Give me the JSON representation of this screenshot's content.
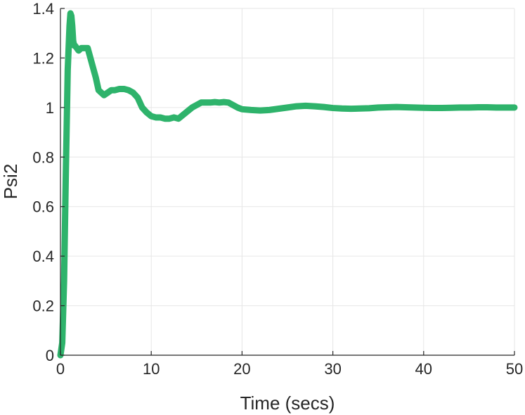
{
  "chart_data": {
    "type": "line",
    "title": "",
    "xlabel": "Time (secs)",
    "ylabel": "Psi2",
    "xlim": [
      0,
      50
    ],
    "ylim": [
      0,
      1.4
    ],
    "xticks": [
      0,
      10,
      20,
      30,
      40,
      50
    ],
    "xtick_labels": [
      "0",
      "10",
      "20",
      "30",
      "40",
      "50"
    ],
    "yticks": [
      0,
      0.2,
      0.4,
      0.6,
      0.8,
      1,
      1.2,
      1.4
    ],
    "ytick_labels": [
      "0",
      "0.2",
      "0.4",
      "0.6",
      "0.8",
      "1",
      "1.2",
      "1.4"
    ],
    "grid": true,
    "legend": "none",
    "series": [
      {
        "color": "#2eb36b",
        "x": [
          0,
          0.2,
          0.4,
          0.6,
          0.8,
          1.0,
          1.1,
          1.2,
          1.3,
          1.4,
          1.5,
          1.6,
          1.8,
          2.0,
          2.3,
          2.6,
          3.0,
          3.3,
          3.6,
          3.9,
          4.2,
          4.5,
          4.8,
          5.2,
          5.6,
          6.0,
          6.5,
          7.0,
          7.5,
          8.0,
          8.5,
          9.0,
          9.5,
          10.0,
          10.5,
          11.0,
          11.5,
          12.0,
          12.5,
          13.0,
          13.5,
          14.0,
          14.5,
          15.0,
          15.5,
          16.0,
          16.5,
          17.0,
          17.5,
          18.0,
          18.5,
          19.0,
          19.5,
          20.0,
          21,
          22,
          23,
          24,
          25,
          26,
          27,
          28,
          29,
          30,
          31,
          32,
          33,
          34,
          35,
          36,
          37,
          38,
          39,
          40,
          41,
          42,
          43,
          44,
          45,
          46,
          47,
          48,
          49,
          50
        ],
        "y": [
          0,
          0.05,
          0.3,
          0.75,
          1.15,
          1.33,
          1.38,
          1.37,
          1.33,
          1.27,
          1.25,
          1.25,
          1.24,
          1.23,
          1.24,
          1.24,
          1.24,
          1.2,
          1.16,
          1.12,
          1.07,
          1.06,
          1.05,
          1.06,
          1.07,
          1.07,
          1.075,
          1.075,
          1.07,
          1.06,
          1.04,
          1.0,
          0.98,
          0.965,
          0.96,
          0.96,
          0.955,
          0.955,
          0.96,
          0.955,
          0.97,
          0.985,
          1.0,
          1.01,
          1.02,
          1.02,
          1.02,
          1.022,
          1.02,
          1.022,
          1.02,
          1.01,
          1.0,
          0.993,
          0.99,
          0.988,
          0.99,
          0.995,
          1.0,
          1.005,
          1.007,
          1.005,
          1.002,
          0.998,
          0.996,
          0.995,
          0.996,
          0.997,
          1.0,
          1.001,
          1.002,
          1.001,
          1.0,
          0.999,
          0.998,
          0.998,
          0.999,
          1.0,
          1.0,
          1.001,
          1.001,
          1.0,
          1.0,
          1.0
        ]
      }
    ]
  }
}
